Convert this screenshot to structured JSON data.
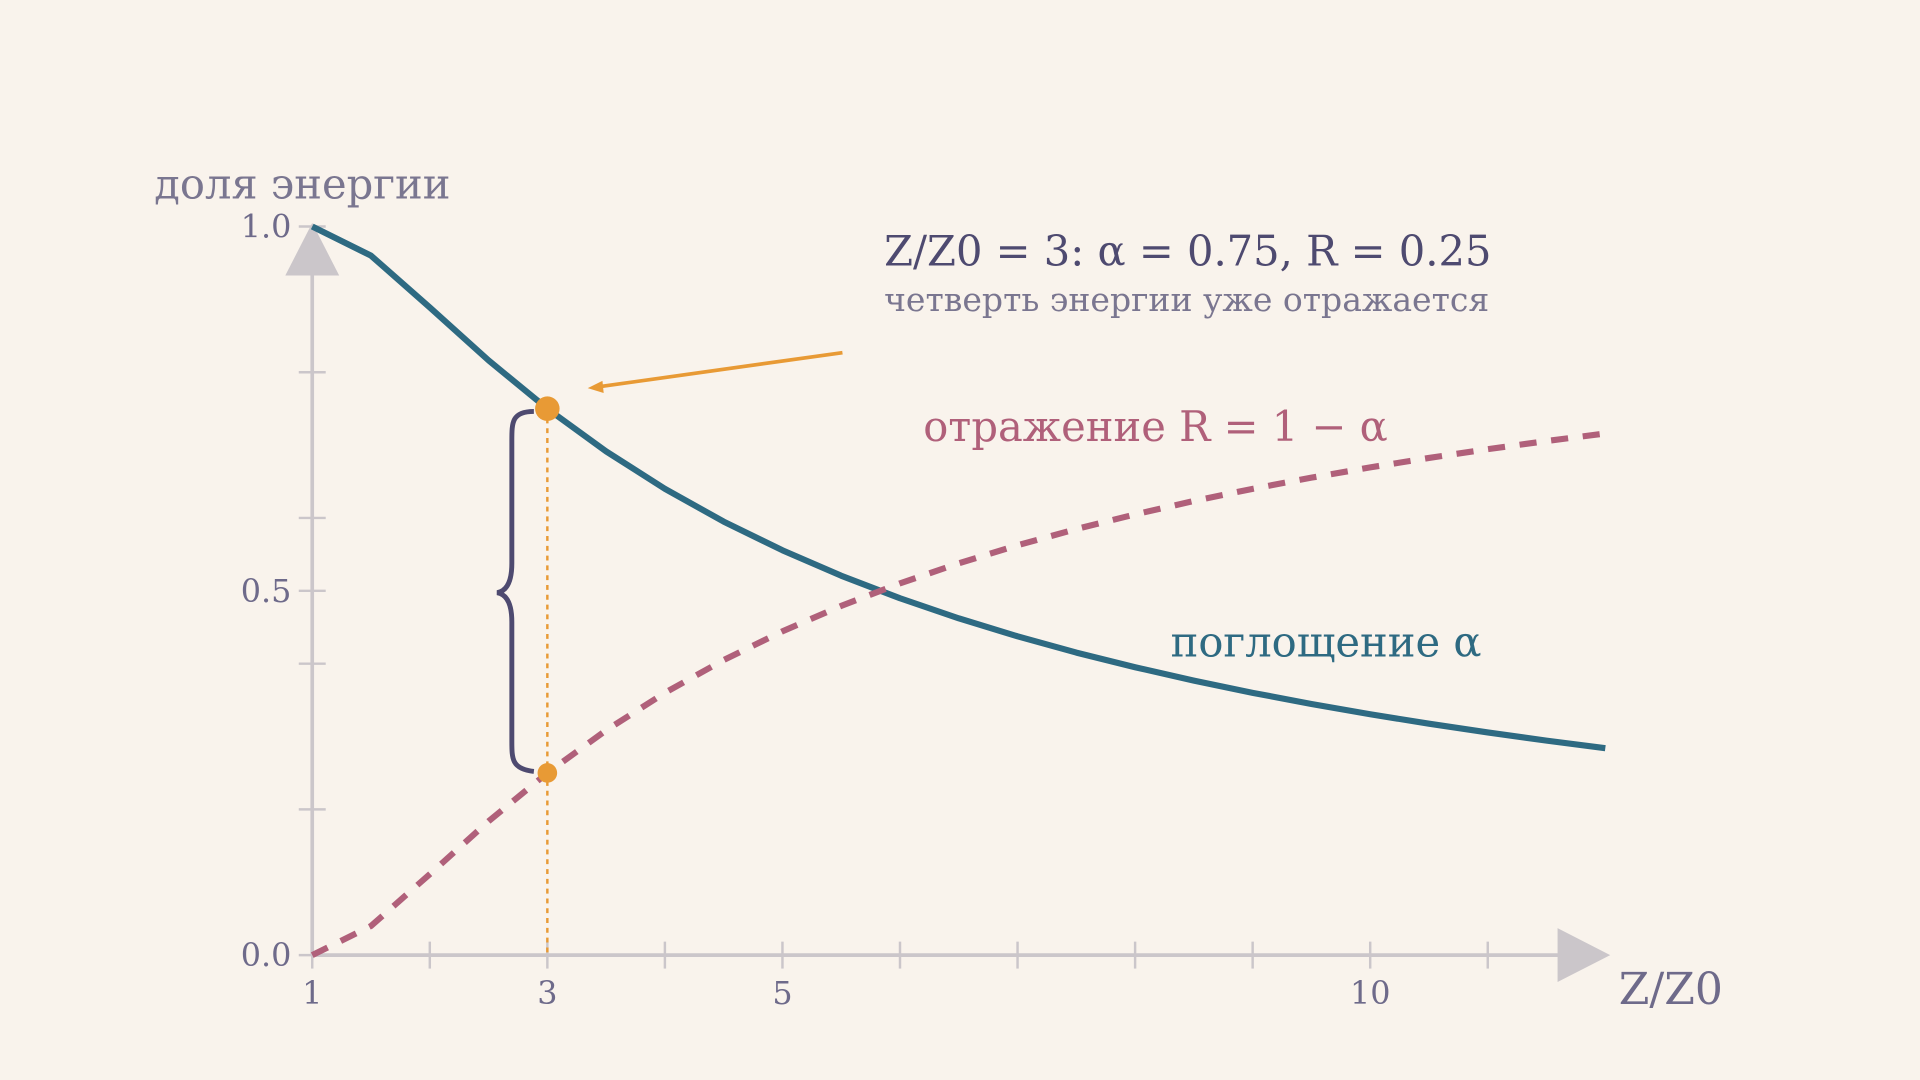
{
  "chart_data": {
    "type": "line",
    "y_label": "доля энергии",
    "x_label": "Z/Z0",
    "x": [
      1,
      1.5,
      2,
      2.5,
      3,
      3.5,
      4,
      4.5,
      5,
      5.5,
      6,
      6.5,
      7,
      7.5,
      8,
      8.5,
      9,
      9.5,
      10,
      10.5,
      11,
      11.5,
      12
    ],
    "series": [
      {
        "name": "поглощение α",
        "color": "#2e6a82",
        "values": [
          1,
          0.96,
          0.8889,
          0.8163,
          0.75,
          0.6914,
          0.64,
          0.595,
          0.5556,
          0.5207,
          0.4898,
          0.4622,
          0.4375,
          0.4152,
          0.3951,
          0.3767,
          0.36,
          0.3447,
          0.3306,
          0.3176,
          0.3056,
          0.2944,
          0.284
        ]
      },
      {
        "name": "отражение R = 1 − α",
        "color": "#b0607a",
        "values": [
          0,
          0.04,
          0.1111,
          0.1837,
          0.25,
          0.3086,
          0.36,
          0.405,
          0.4444,
          0.4793,
          0.5102,
          0.5378,
          0.5625,
          0.5848,
          0.6049,
          0.6233,
          0.64,
          0.6553,
          0.6694,
          0.6824,
          0.6944,
          0.7056,
          0.716
        ]
      }
    ],
    "xlim": [
      1,
      12
    ],
    "ylim": [
      0,
      1
    ],
    "xticks": [
      1,
      3,
      5,
      10
    ],
    "xminor": [
      2,
      4,
      6,
      7,
      8,
      9,
      11
    ],
    "yticks": [
      {
        "value": 0,
        "label": "0.0"
      },
      {
        "value": 0.5,
        "label": "0.5"
      },
      {
        "value": 1,
        "label": "1.0"
      }
    ],
    "yminor": [
      0.2,
      0.4,
      0.6,
      0.8
    ],
    "annotation": {
      "title": "Z/Z0 = 3:  α = 0.75,  R = 0.25",
      "subtitle": "четверть энергии уже отражается"
    }
  }
}
